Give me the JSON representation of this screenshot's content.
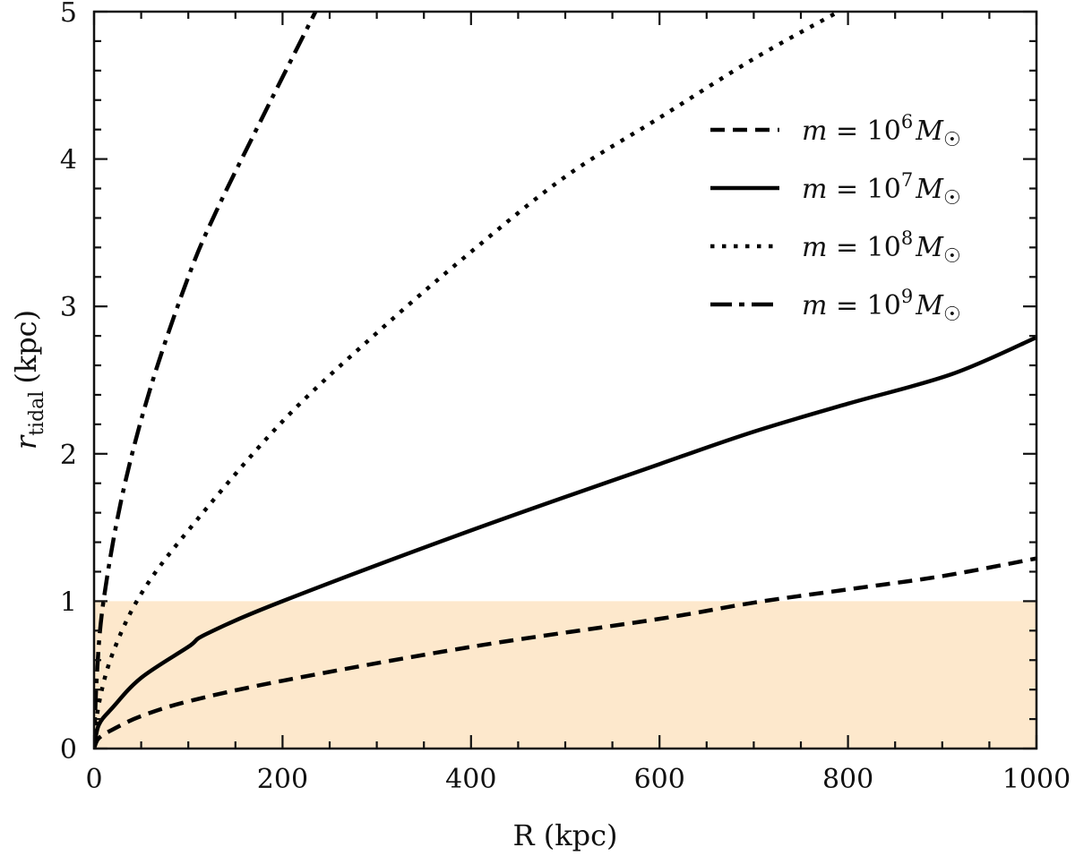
{
  "chart_data": {
    "type": "line",
    "title": "",
    "xlabel": "R (kpc)",
    "ylabel": "r_tidal (kpc)",
    "ylabel_main": "r",
    "ylabel_sub": "tidal",
    "ylabel_unit": "(kpc)",
    "xlim": [
      0,
      1000
    ],
    "ylim": [
      0,
      5
    ],
    "xticks": [
      0,
      200,
      400,
      600,
      800,
      1000
    ],
    "xtick_labels": [
      "0",
      "200",
      "400",
      "600",
      "800",
      "1000"
    ],
    "yticks": [
      0,
      1,
      2,
      3,
      4,
      5
    ],
    "ytick_labels": [
      "0",
      "1",
      "2",
      "3",
      "4",
      "5"
    ],
    "grid": false,
    "legend_position": "upper right",
    "shaded_region": {
      "y0": 0,
      "y1": 1,
      "color": "#fde8cc"
    },
    "series": [
      {
        "name": "m = 10^6 M☉",
        "label_base": "m = 10",
        "label_exp": "6",
        "label_unit": "M☉",
        "linestyle": "dashed",
        "x": [
          0,
          5,
          20,
          50,
          100,
          200,
          400,
          600,
          700,
          800,
          900,
          1000
        ],
        "y": [
          0,
          0.07,
          0.13,
          0.22,
          0.32,
          0.46,
          0.69,
          0.88,
          0.99,
          1.08,
          1.17,
          1.29
        ]
      },
      {
        "name": "m = 10^7 M☉",
        "label_base": "m = 10",
        "label_exp": "7",
        "label_unit": "M☉",
        "linestyle": "solid",
        "x": [
          0,
          5,
          20,
          50,
          100,
          120,
          200,
          400,
          600,
          700,
          800,
          910,
          1000
        ],
        "y": [
          0,
          0.16,
          0.28,
          0.48,
          0.69,
          0.78,
          1.0,
          1.48,
          1.93,
          2.15,
          2.34,
          2.54,
          2.79
        ]
      },
      {
        "name": "m = 10^8 M☉",
        "label_base": "m = 10",
        "label_exp": "8",
        "label_unit": "M☉",
        "linestyle": "dotted",
        "x": [
          0,
          5,
          20,
          50,
          100,
          200,
          300,
          400,
          500,
          600,
          700,
          790
        ],
        "y": [
          0,
          0.3,
          0.65,
          1.05,
          1.48,
          2.22,
          2.82,
          3.37,
          3.88,
          4.28,
          4.68,
          5.0
        ]
      },
      {
        "name": "m = 10^9 M☉",
        "label_base": "m = 10",
        "label_exp": "9",
        "label_unit": "M☉",
        "linestyle": "dashdot",
        "x": [
          0,
          3,
          10,
          30,
          60,
          100,
          130,
          180,
          235
        ],
        "y": [
          0,
          0.5,
          1.0,
          1.72,
          2.45,
          3.2,
          3.65,
          4.3,
          5.0
        ]
      }
    ]
  }
}
